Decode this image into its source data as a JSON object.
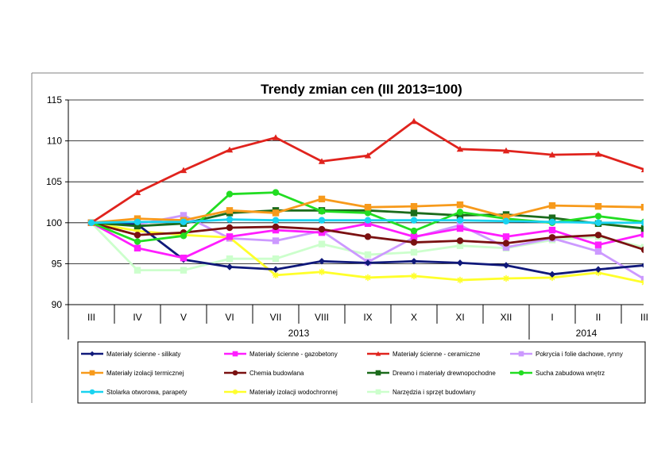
{
  "chart_data": {
    "type": "line",
    "title": "Trendy zmian cen (III 2013=100)",
    "xlabel": "",
    "ylabel": "",
    "ylim": [
      90,
      115
    ],
    "yticks": [
      90,
      95,
      100,
      105,
      110,
      115
    ],
    "grid": "horizontal",
    "legend_position": "bottom",
    "categories": [
      "III",
      "IV",
      "V",
      "VI",
      "VII",
      "VIII",
      "IX",
      "X",
      "XI",
      "XII",
      "I",
      "II",
      "III"
    ],
    "year_groups": [
      {
        "label": "2013",
        "span": 10
      },
      {
        "label": "2014",
        "span": 3
      }
    ],
    "series": [
      {
        "name": "Materiały ścienne - silikaty",
        "color": "#10197a",
        "marker": "diamond",
        "values": [
          100,
          99.8,
          95.5,
          94.6,
          94.3,
          95.3,
          95.1,
          95.3,
          95.1,
          94.8,
          93.7,
          94.3,
          94.8
        ]
      },
      {
        "name": "Materiały ścienne - gazobetony",
        "color": "#ff1dff",
        "marker": "square",
        "values": [
          100,
          96.9,
          95.7,
          98.3,
          99.1,
          98.8,
          99.9,
          98.3,
          99.3,
          98.3,
          99.1,
          97.3,
          98.6
        ]
      },
      {
        "name": "Materiały ścienne - ceramiczne",
        "color": "#e0231d",
        "marker": "triangle",
        "values": [
          100,
          103.7,
          106.4,
          108.9,
          110.4,
          107.5,
          108.2,
          112.4,
          109.0,
          108.8,
          108.3,
          108.4,
          106.5
        ]
      },
      {
        "name": "Pokrycia i folie dachowe, rynny",
        "color": "#cc99ff",
        "marker": "square",
        "values": [
          100,
          99.8,
          100.9,
          98.1,
          97.8,
          99.0,
          95.2,
          98.2,
          99.7,
          97.0,
          98.1,
          96.5,
          93.1
        ]
      },
      {
        "name": "Materiały izolacji termicznej",
        "color": "#f79a1b",
        "marker": "square",
        "values": [
          100,
          100.5,
          100.3,
          101.5,
          101.2,
          102.9,
          101.9,
          102.0,
          102.2,
          100.7,
          102.1,
          102.0,
          101.9
        ]
      },
      {
        "name": "Chemia budowlana",
        "color": "#7a1111",
        "marker": "circle",
        "values": [
          100,
          98.5,
          98.8,
          99.4,
          99.5,
          99.2,
          98.3,
          97.6,
          97.8,
          97.5,
          98.2,
          98.5,
          96.7
        ]
      },
      {
        "name": "Drewno i materiały drewnopochodne",
        "color": "#1b6b1b",
        "marker": "square",
        "values": [
          100,
          99.6,
          99.9,
          101.2,
          101.5,
          101.5,
          101.5,
          101.2,
          100.9,
          101.0,
          100.6,
          99.9,
          99.3
        ]
      },
      {
        "name": "Sucha zabudowa wnętrz",
        "color": "#22dd22",
        "marker": "circle",
        "values": [
          100,
          97.7,
          98.4,
          103.5,
          103.7,
          101.4,
          101.2,
          99.0,
          101.3,
          100.5,
          100.0,
          100.8,
          100.1
        ]
      },
      {
        "name": "Stolarka otworowa, parapety",
        "color": "#19d3f0",
        "marker": "circle",
        "values": [
          100,
          100.1,
          100.1,
          100.4,
          100.3,
          100.3,
          100.3,
          100.3,
          100.3,
          100.2,
          100.1,
          100.0,
          100.0
        ]
      },
      {
        "name": "Materiały izolacji wodochronnej",
        "color": "#ffff2a",
        "marker": "star",
        "values": [
          100,
          99.0,
          98.5,
          98.2,
          93.6,
          94.0,
          93.3,
          93.5,
          93.0,
          93.2,
          93.3,
          93.9,
          92.7
        ]
      },
      {
        "name": "Narzędzia i sprzęt budowlany",
        "color": "#ccffcc",
        "marker": "square",
        "values": [
          100,
          94.2,
          94.2,
          95.6,
          95.6,
          97.4,
          96.1,
          96.4,
          97.2,
          96.9,
          97.9,
          98.3,
          97.0
        ]
      }
    ]
  }
}
